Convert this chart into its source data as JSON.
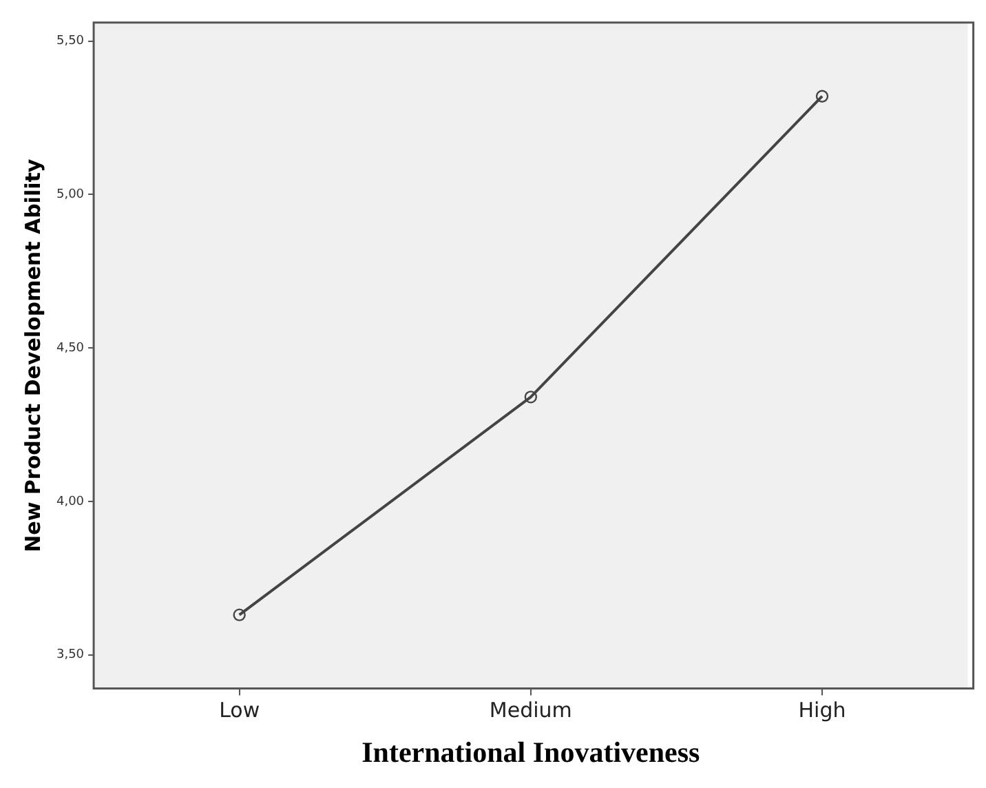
{
  "chart_data": {
    "type": "line",
    "xlabel": "International Inovativeness",
    "ylabel": "New Product Development Ability",
    "categories": [
      "Low",
      "Medium",
      "High"
    ],
    "series": [
      {
        "color": "#444444",
        "values": [
          3.63,
          4.34,
          5.32
        ]
      }
    ],
    "marker": "circle",
    "line_style": "solid",
    "ylim": [
      3.39,
      5.56
    ],
    "yticks": [
      {
        "value": 3.5,
        "label": "3,50"
      },
      {
        "value": 4.0,
        "label": "4,00"
      },
      {
        "value": 4.5,
        "label": "4,50"
      },
      {
        "value": 5.0,
        "label": "5,00"
      },
      {
        "value": 5.5,
        "label": "5,50"
      }
    ]
  }
}
